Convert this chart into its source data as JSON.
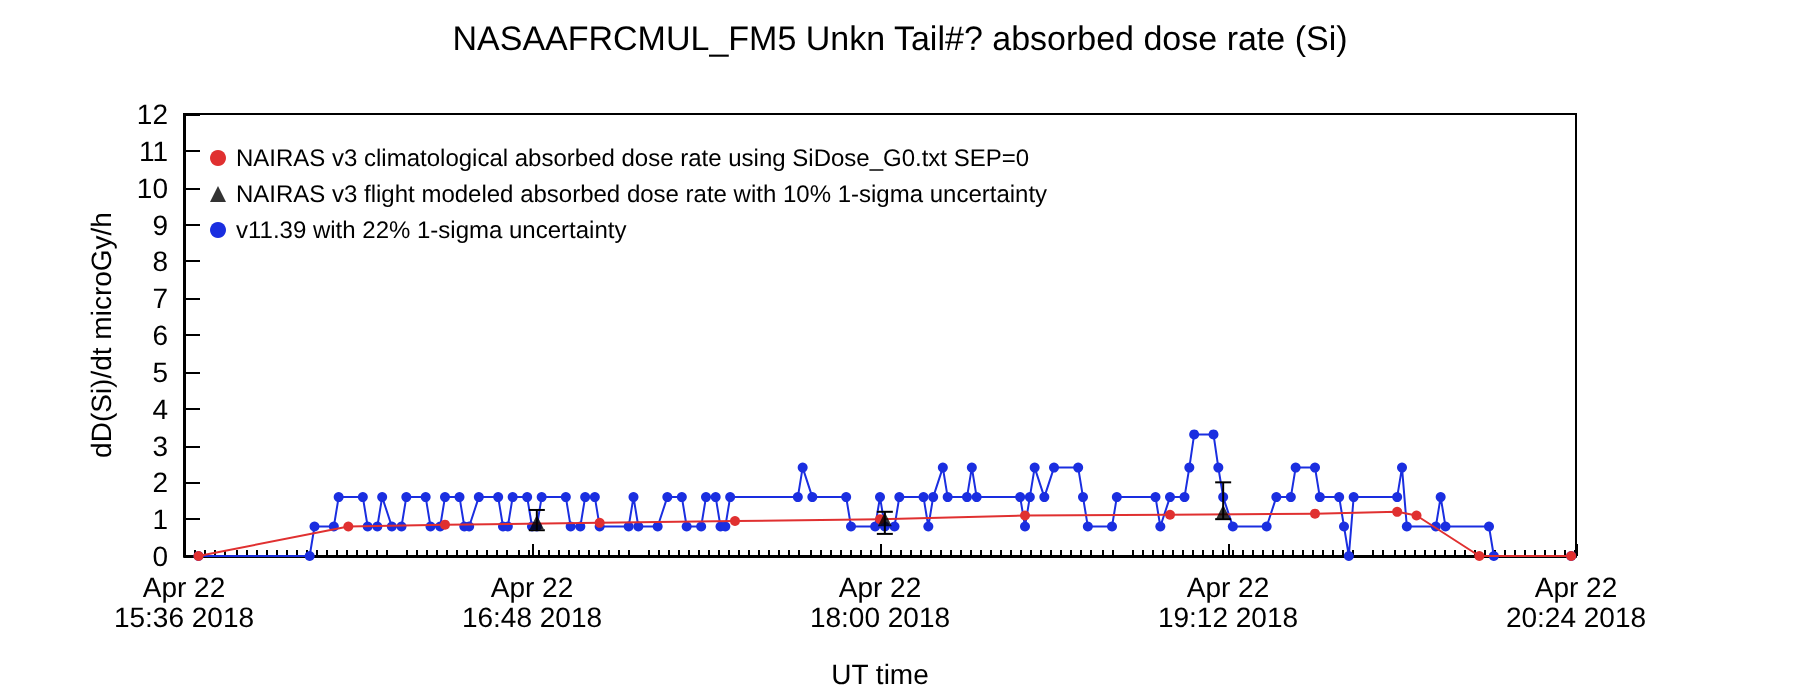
{
  "chart_data": {
    "type": "line",
    "title": "NASAAFRCMUL_FM5 Unkn Tail#? absorbed dose rate (Si)",
    "xlabel": "UT time",
    "ylabel": "dD(Si)/dt microGy/h",
    "xlim": [
      "2018-04-22T15:36",
      "2018-04-22T20:24"
    ],
    "xticks": [
      {
        "value": "2018-04-22T15:36",
        "label": "Apr 22\n15:36 2018"
      },
      {
        "value": "2018-04-22T16:48",
        "label": "Apr 22\n16:48 2018"
      },
      {
        "value": "2018-04-22T18:00",
        "label": "Apr 22\n18:00 2018"
      },
      {
        "value": "2018-04-22T19:12",
        "label": "Apr 22\n19:12 2018"
      },
      {
        "value": "2018-04-22T20:24",
        "label": "Apr 22\n20:24 2018"
      }
    ],
    "ylim": [
      0,
      12
    ],
    "yticks": [
      0,
      1,
      2,
      3,
      4,
      5,
      6,
      7,
      8,
      9,
      10,
      11,
      12
    ],
    "legend": "top left",
    "line_style": "solid",
    "series": [
      {
        "name": "NAIRAS v3 climatological absorbed dose rate using SiDose_G0.txt SEP=0",
        "marker": "circle",
        "color": "#e03030",
        "x": [
          "2018-04-22T15:39",
          "2018-04-22T16:10",
          "2018-04-22T16:30",
          "2018-04-22T17:02",
          "2018-04-22T17:30",
          "2018-04-22T18:00",
          "2018-04-22T18:30",
          "2018-04-22T19:00",
          "2018-04-22T19:30",
          "2018-04-22T19:47",
          "2018-04-22T19:51",
          "2018-04-22T20:04",
          "2018-04-22T20:23"
        ],
        "values": [
          0,
          0.8,
          0.85,
          0.9,
          0.95,
          1.0,
          1.1,
          1.12,
          1.15,
          1.2,
          1.1,
          0,
          0
        ]
      },
      {
        "name": "NAIRAS v3 flight modeled absorbed dose rate with 10% 1-sigma uncertainty",
        "type": "scatter",
        "marker": "triangle",
        "color": "#000000",
        "x": [
          "2018-04-22T16:49",
          "2018-04-22T18:01",
          "2018-04-22T19:11"
        ],
        "values": [
          0.92,
          1.0,
          1.2
        ],
        "errors": [
          [
            0.7,
            1.25
          ],
          [
            0.6,
            1.2
          ],
          [
            1.0,
            2.0
          ]
        ]
      },
      {
        "name": "v11.39 with 22% 1-sigma uncertainty",
        "marker": "circle",
        "color": "#1a2ee0",
        "x": [
          "2018-04-22T15:39",
          "2018-04-22T16:02",
          "2018-04-22T16:03",
          "2018-04-22T16:07",
          "2018-04-22T16:08",
          "2018-04-22T16:13",
          "2018-04-22T16:14",
          "2018-04-22T16:16",
          "2018-04-22T16:17",
          "2018-04-22T16:19",
          "2018-04-22T16:21",
          "2018-04-22T16:22",
          "2018-04-22T16:26",
          "2018-04-22T16:27",
          "2018-04-22T16:29",
          "2018-04-22T16:30",
          "2018-04-22T16:33",
          "2018-04-22T16:34",
          "2018-04-22T16:35",
          "2018-04-22T16:37",
          "2018-04-22T16:41",
          "2018-04-22T16:42",
          "2018-04-22T16:43",
          "2018-04-22T16:44",
          "2018-04-22T16:47",
          "2018-04-22T16:48",
          "2018-04-22T16:49",
          "2018-04-22T16:50",
          "2018-04-22T16:55",
          "2018-04-22T16:56",
          "2018-04-22T16:58",
          "2018-04-22T16:59",
          "2018-04-22T17:01",
          "2018-04-22T17:02",
          "2018-04-22T17:08",
          "2018-04-22T17:09",
          "2018-04-22T17:10",
          "2018-04-22T17:14",
          "2018-04-22T17:16",
          "2018-04-22T17:19",
          "2018-04-22T17:20",
          "2018-04-22T17:23",
          "2018-04-22T17:24",
          "2018-04-22T17:26",
          "2018-04-22T17:27",
          "2018-04-22T17:28",
          "2018-04-22T17:29",
          "2018-04-22T17:43",
          "2018-04-22T17:44",
          "2018-04-22T17:46",
          "2018-04-22T17:53",
          "2018-04-22T17:54",
          "2018-04-22T17:59",
          "2018-04-22T18:00",
          "2018-04-22T18:01",
          "2018-04-22T18:03",
          "2018-04-22T18:04",
          "2018-04-22T18:09",
          "2018-04-22T18:10",
          "2018-04-22T18:11",
          "2018-04-22T18:13",
          "2018-04-22T18:14",
          "2018-04-22T18:18",
          "2018-04-22T18:19",
          "2018-04-22T18:20",
          "2018-04-22T18:29",
          "2018-04-22T18:30",
          "2018-04-22T18:31",
          "2018-04-22T18:32",
          "2018-04-22T18:34",
          "2018-04-22T18:36",
          "2018-04-22T18:41",
          "2018-04-22T18:42",
          "2018-04-22T18:43",
          "2018-04-22T18:48",
          "2018-04-22T18:49",
          "2018-04-22T18:57",
          "2018-04-22T18:58",
          "2018-04-22T19:00",
          "2018-04-22T19:03",
          "2018-04-22T19:04",
          "2018-04-22T19:05",
          "2018-04-22T19:09",
          "2018-04-22T19:10",
          "2018-04-22T19:11",
          "2018-04-22T19:13",
          "2018-04-22T19:20",
          "2018-04-22T19:22",
          "2018-04-22T19:25",
          "2018-04-22T19:26",
          "2018-04-22T19:30",
          "2018-04-22T19:31",
          "2018-04-22T19:35",
          "2018-04-22T19:36",
          "2018-04-22T19:37",
          "2018-04-22T19:38",
          "2018-04-22T19:47",
          "2018-04-22T19:48",
          "2018-04-22T19:49",
          "2018-04-22T19:55",
          "2018-04-22T19:56",
          "2018-04-22T19:57",
          "2018-04-22T20:06",
          "2018-04-22T20:07",
          "2018-04-22T20:23"
        ],
        "values": [
          0,
          0,
          0.8,
          0.8,
          1.6,
          1.6,
          0.8,
          0.8,
          1.6,
          0.8,
          0.8,
          1.6,
          1.6,
          0.8,
          0.8,
          1.6,
          1.6,
          0.8,
          0.8,
          1.6,
          1.6,
          0.8,
          0.8,
          1.6,
          1.6,
          0.8,
          0.8,
          1.6,
          1.6,
          0.8,
          0.8,
          1.6,
          1.6,
          0.8,
          0.8,
          1.6,
          0.8,
          0.8,
          1.6,
          1.6,
          0.8,
          0.8,
          1.6,
          1.6,
          0.8,
          0.8,
          1.6,
          1.6,
          2.4,
          1.6,
          1.6,
          0.8,
          0.8,
          1.6,
          0.8,
          0.8,
          1.6,
          1.6,
          0.8,
          1.6,
          2.4,
          1.6,
          1.6,
          2.4,
          1.6,
          1.6,
          0.8,
          1.6,
          2.4,
          1.6,
          2.4,
          2.4,
          1.6,
          0.8,
          0.8,
          1.6,
          1.6,
          0.8,
          1.6,
          1.6,
          2.4,
          3.3,
          3.3,
          2.4,
          1.6,
          0.8,
          0.8,
          1.6,
          1.6,
          2.4,
          2.4,
          1.6,
          1.6,
          0.8,
          0,
          1.6,
          1.6,
          2.4,
          0.8,
          0.8,
          1.6,
          0.8,
          0.8,
          0,
          0
        ]
      }
    ]
  }
}
